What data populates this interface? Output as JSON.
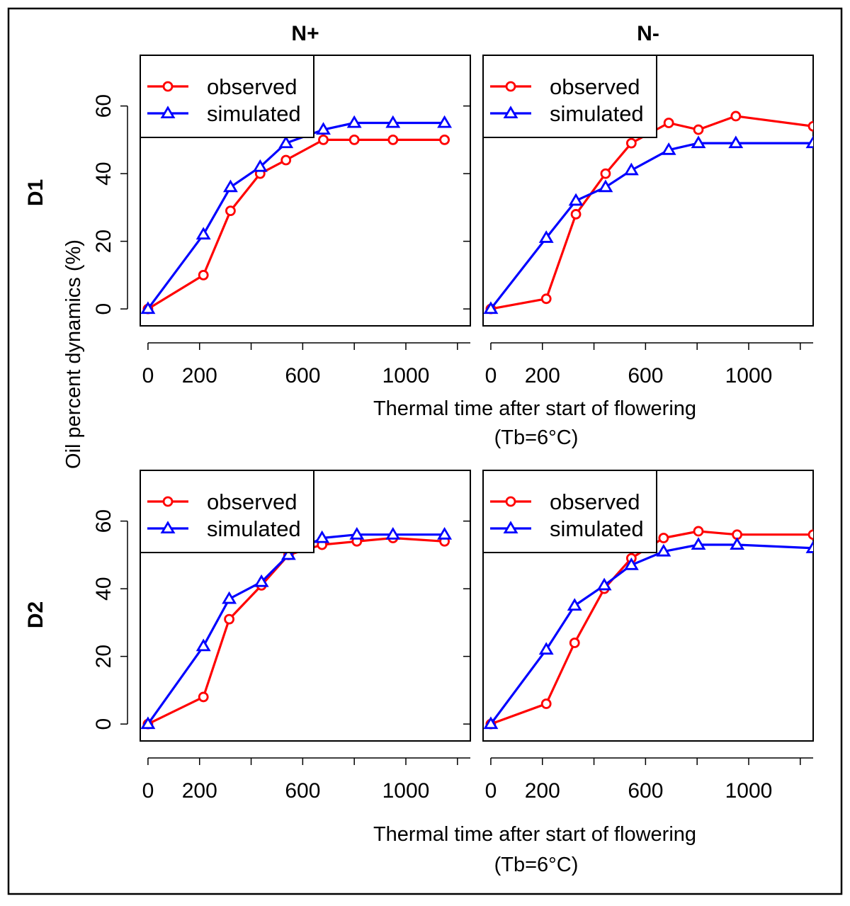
{
  "chart_data": {
    "type": "line",
    "ylabel": "Oil percent dynamics (%)",
    "xlabel_line1": "Thermal time after start of flowering",
    "xlabel_line2": "(Tb=6°C)",
    "columns": [
      "N+",
      "N-"
    ],
    "rows": [
      "D1",
      "D2"
    ],
    "xlim": [
      -30,
      1250
    ],
    "ylim": [
      -5,
      75
    ],
    "xticks": [
      0,
      200,
      600,
      1000
    ],
    "xticks_minor": [
      400,
      800,
      1200
    ],
    "yticks": [
      0,
      20,
      40,
      60
    ],
    "legend": {
      "placement": "top-left",
      "entries": [
        "observed",
        "simulated"
      ]
    },
    "colors": {
      "observed": "#ff0000",
      "simulated": "#0000ff",
      "axis": "#000000"
    },
    "panels": [
      {
        "row": "D1",
        "column": "N+",
        "x": [
          0,
          215,
          320,
          435,
          535,
          680,
          800,
          950,
          1150
        ],
        "series": [
          {
            "name": "observed",
            "marker": "circle",
            "values": [
              0,
              10,
              29,
              40,
              44,
              50,
              50,
              50,
              50
            ]
          },
          {
            "name": "simulated",
            "marker": "triangle",
            "values": [
              0,
              22,
              36,
              42,
              49,
              53,
              55,
              55,
              55
            ]
          }
        ]
      },
      {
        "row": "D1",
        "column": "N-",
        "x": [
          0,
          215,
          330,
          445,
          545,
          690,
          805,
          950,
          1250
        ],
        "series": [
          {
            "name": "observed",
            "marker": "circle",
            "values": [
              0,
              3,
              28,
              40,
              49,
              55,
              53,
              57,
              54
            ]
          },
          {
            "name": "simulated",
            "marker": "triangle",
            "values": [
              0,
              21,
              32,
              36,
              41,
              47,
              49,
              49,
              49
            ]
          }
        ]
      },
      {
        "row": "D2",
        "column": "N+",
        "x": [
          0,
          215,
          315,
          440,
          545,
          675,
          810,
          950,
          1150
        ],
        "series": [
          {
            "name": "observed",
            "marker": "circle",
            "values": [
              0,
              8,
              31,
              41,
              50,
              53,
              54,
              55,
              54
            ]
          },
          {
            "name": "simulated",
            "marker": "triangle",
            "values": [
              0,
              23,
              37,
              42,
              50,
              55,
              56,
              56,
              56
            ]
          }
        ]
      },
      {
        "row": "D2",
        "column": "N-",
        "x": [
          0,
          215,
          325,
          440,
          545,
          670,
          805,
          955,
          1250
        ],
        "series": [
          {
            "name": "observed",
            "marker": "circle",
            "values": [
              0,
              6,
              24,
              40,
              49,
              55,
              57,
              56,
              56
            ]
          },
          {
            "name": "simulated",
            "marker": "triangle",
            "values": [
              0,
              22,
              35,
              41,
              47,
              51,
              53,
              53,
              52
            ]
          }
        ]
      }
    ]
  }
}
